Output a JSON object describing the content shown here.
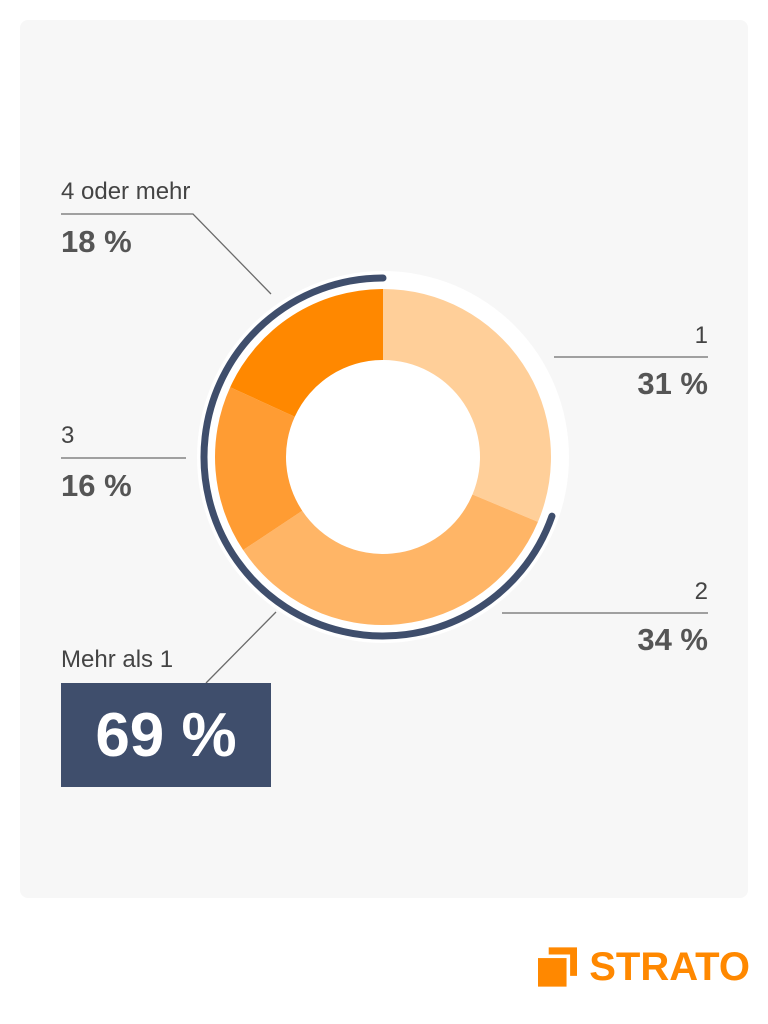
{
  "chart_data": {
    "type": "pie",
    "style": "donut",
    "categories": [
      "1",
      "2",
      "3",
      "4 oder mehr"
    ],
    "values": [
      31,
      34,
      16,
      18
    ],
    "value_labels": [
      "31 %",
      "34 %",
      "16 %",
      "18 %"
    ],
    "colors": [
      "#ffcf99",
      "#ffb566",
      "#ff9c33",
      "#ff8800"
    ],
    "highlight": {
      "label": "Mehr als 1",
      "value": 69,
      "value_label": "69 %",
      "arc_color": "#3f4e6c",
      "box_color": "#3f4e6c"
    }
  },
  "brand": {
    "name": "STRATO",
    "color": "#ff8800",
    "icon": "strato-logo-icon"
  }
}
